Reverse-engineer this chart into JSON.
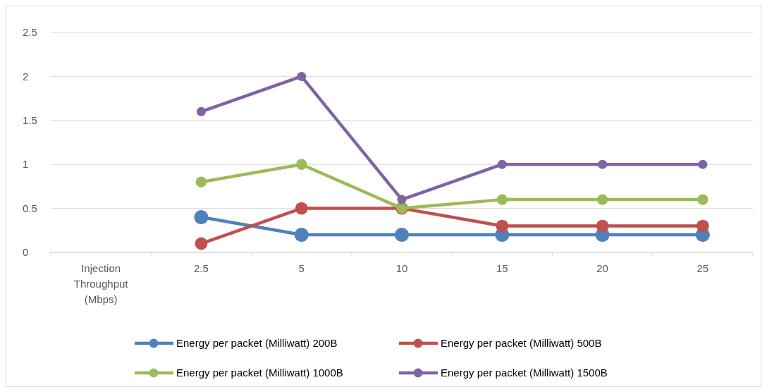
{
  "chart_data": {
    "type": "line",
    "categories": [
      "Injection Throughput (Mbps)",
      "2.5",
      "5",
      "10",
      "15",
      "20",
      "25"
    ],
    "series": [
      {
        "name": "Energy per packet (Milliwatt) 200B",
        "color": "#4f81bd",
        "values": [
          null,
          0.4,
          0.2,
          0.2,
          0.2,
          0.2,
          0.2
        ]
      },
      {
        "name": "Energy per packet (Milliwatt) 500B",
        "color": "#c0504d",
        "values": [
          null,
          0.1,
          0.5,
          0.5,
          0.3,
          0.3,
          0.3
        ]
      },
      {
        "name": "Energy per packet (Milliwatt) 1000B",
        "color": "#9bbb59",
        "values": [
          null,
          0.8,
          1.0,
          0.5,
          0.6,
          0.6,
          0.6
        ]
      },
      {
        "name": "Energy per packet (Milliwatt) 1500B",
        "color": "#8064a2",
        "values": [
          null,
          1.6,
          2.0,
          0.6,
          1.0,
          1.0,
          1.0
        ]
      }
    ],
    "ylim": [
      0,
      2.5
    ],
    "yticks": [
      0,
      0.5,
      1,
      1.5,
      2,
      2.5
    ],
    "grid": "y",
    "legend": "bottom",
    "marker": "circle",
    "line_style": "solid"
  }
}
